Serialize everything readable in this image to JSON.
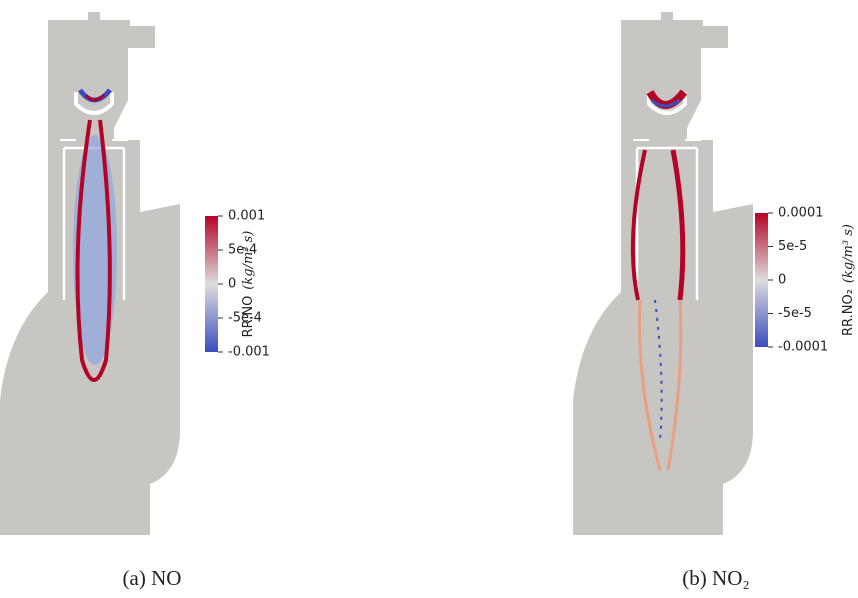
{
  "panels": [
    {
      "caption": "(a) NO",
      "colorbar": {
        "label": "RR.NO",
        "unit": "(kg/m³ s)",
        "ticks": [
          "0.001",
          "5e-4",
          "0",
          "-5e-4",
          "-0.001"
        ]
      }
    },
    {
      "caption": "(b) NO₂",
      "colorbar": {
        "label": "RR.NO₂",
        "unit": "(kg/m³ s)",
        "ticks": [
          "0.0001",
          "5e-5",
          "0",
          "-5e-5",
          "-0.0001"
        ]
      }
    }
  ]
}
